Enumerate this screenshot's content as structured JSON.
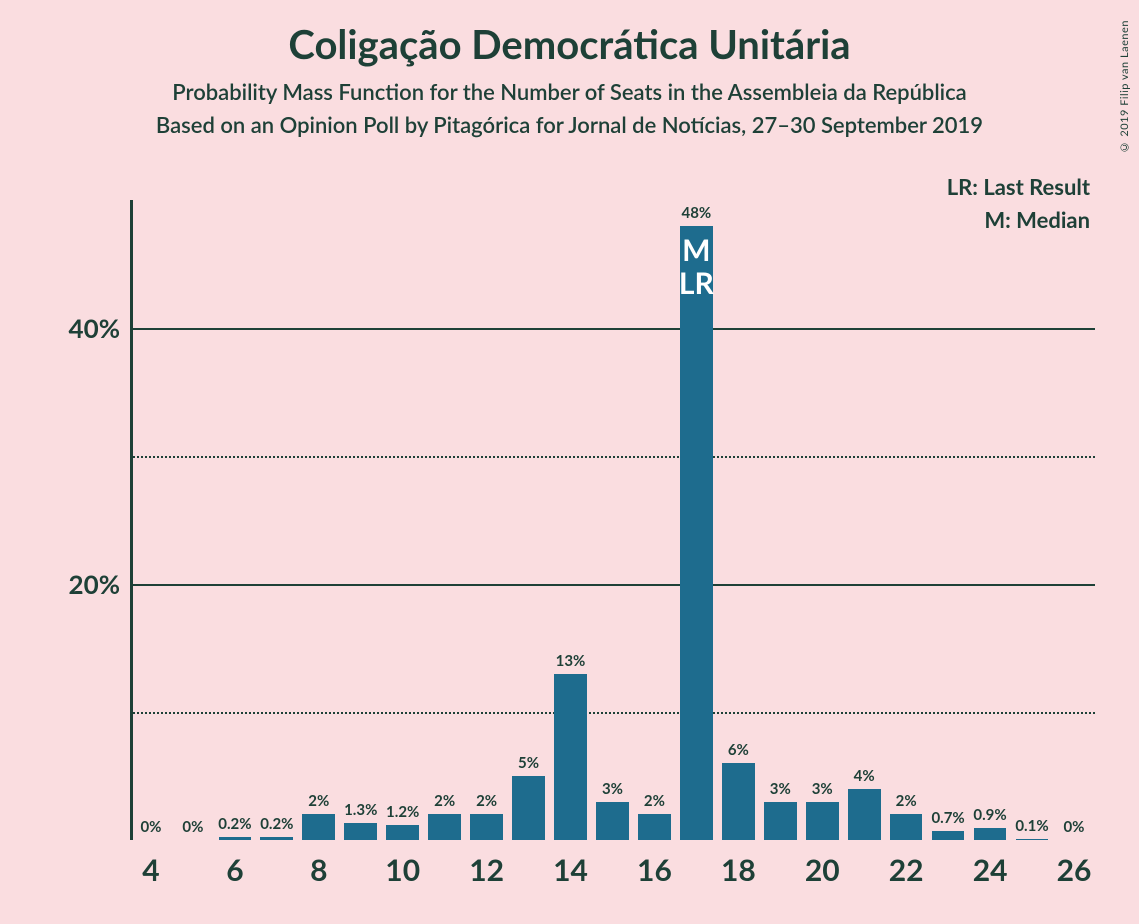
{
  "copyright": "© 2019 Filip van Laenen",
  "title": "Coligação Democrática Unitária",
  "subtitle1": "Probability Mass Function for the Number of Seats in the Assembleia da República",
  "subtitle2": "Based on an Opinion Poll by Pitagórica for Jornal de Notícias, 27–30 September 2019",
  "legend": {
    "lr": "LR: Last Result",
    "m": "M: Median"
  },
  "chart": {
    "type": "bar",
    "background_color": "#fadde0",
    "bar_color": "#1e6c8e",
    "text_color": "#1e4037",
    "marker_text_color": "#ffffff",
    "ylim": [
      0,
      50
    ],
    "y_major_ticks": [
      20,
      40
    ],
    "y_minor_ticks": [
      10,
      30
    ],
    "y_tick_labels": {
      "20": "20%",
      "40": "40%"
    },
    "x_range": [
      4,
      26
    ],
    "x_tick_step": 2,
    "x_ticks": [
      4,
      6,
      8,
      10,
      12,
      14,
      16,
      18,
      20,
      22,
      24,
      26
    ],
    "bar_width_ratio": 0.78,
    "title_fontsize": 40,
    "subtitle_fontsize": 22,
    "axis_label_fontsize": 30,
    "bar_label_fontsize": 15,
    "bars": [
      {
        "x": 4,
        "value": 0,
        "label": "0%"
      },
      {
        "x": 5,
        "value": 0,
        "label": "0%"
      },
      {
        "x": 6,
        "value": 0.2,
        "label": "0.2%"
      },
      {
        "x": 7,
        "value": 0.2,
        "label": "0.2%"
      },
      {
        "x": 8,
        "value": 2,
        "label": "2%"
      },
      {
        "x": 9,
        "value": 1.3,
        "label": "1.3%"
      },
      {
        "x": 10,
        "value": 1.2,
        "label": "1.2%"
      },
      {
        "x": 11,
        "value": 2,
        "label": "2%"
      },
      {
        "x": 12,
        "value": 2,
        "label": "2%"
      },
      {
        "x": 13,
        "value": 5,
        "label": "5%"
      },
      {
        "x": 14,
        "value": 13,
        "label": "13%"
      },
      {
        "x": 15,
        "value": 3,
        "label": "3%"
      },
      {
        "x": 16,
        "value": 2,
        "label": "2%"
      },
      {
        "x": 17,
        "value": 48,
        "label": "48%",
        "markers": [
          "M",
          "LR"
        ]
      },
      {
        "x": 18,
        "value": 6,
        "label": "6%"
      },
      {
        "x": 19,
        "value": 3,
        "label": "3%"
      },
      {
        "x": 20,
        "value": 3,
        "label": "3%"
      },
      {
        "x": 21,
        "value": 4,
        "label": "4%"
      },
      {
        "x": 22,
        "value": 2,
        "label": "2%"
      },
      {
        "x": 23,
        "value": 0.7,
        "label": "0.7%"
      },
      {
        "x": 24,
        "value": 0.9,
        "label": "0.9%"
      },
      {
        "x": 25,
        "value": 0.1,
        "label": "0.1%"
      },
      {
        "x": 26,
        "value": 0,
        "label": "0%"
      }
    ]
  }
}
